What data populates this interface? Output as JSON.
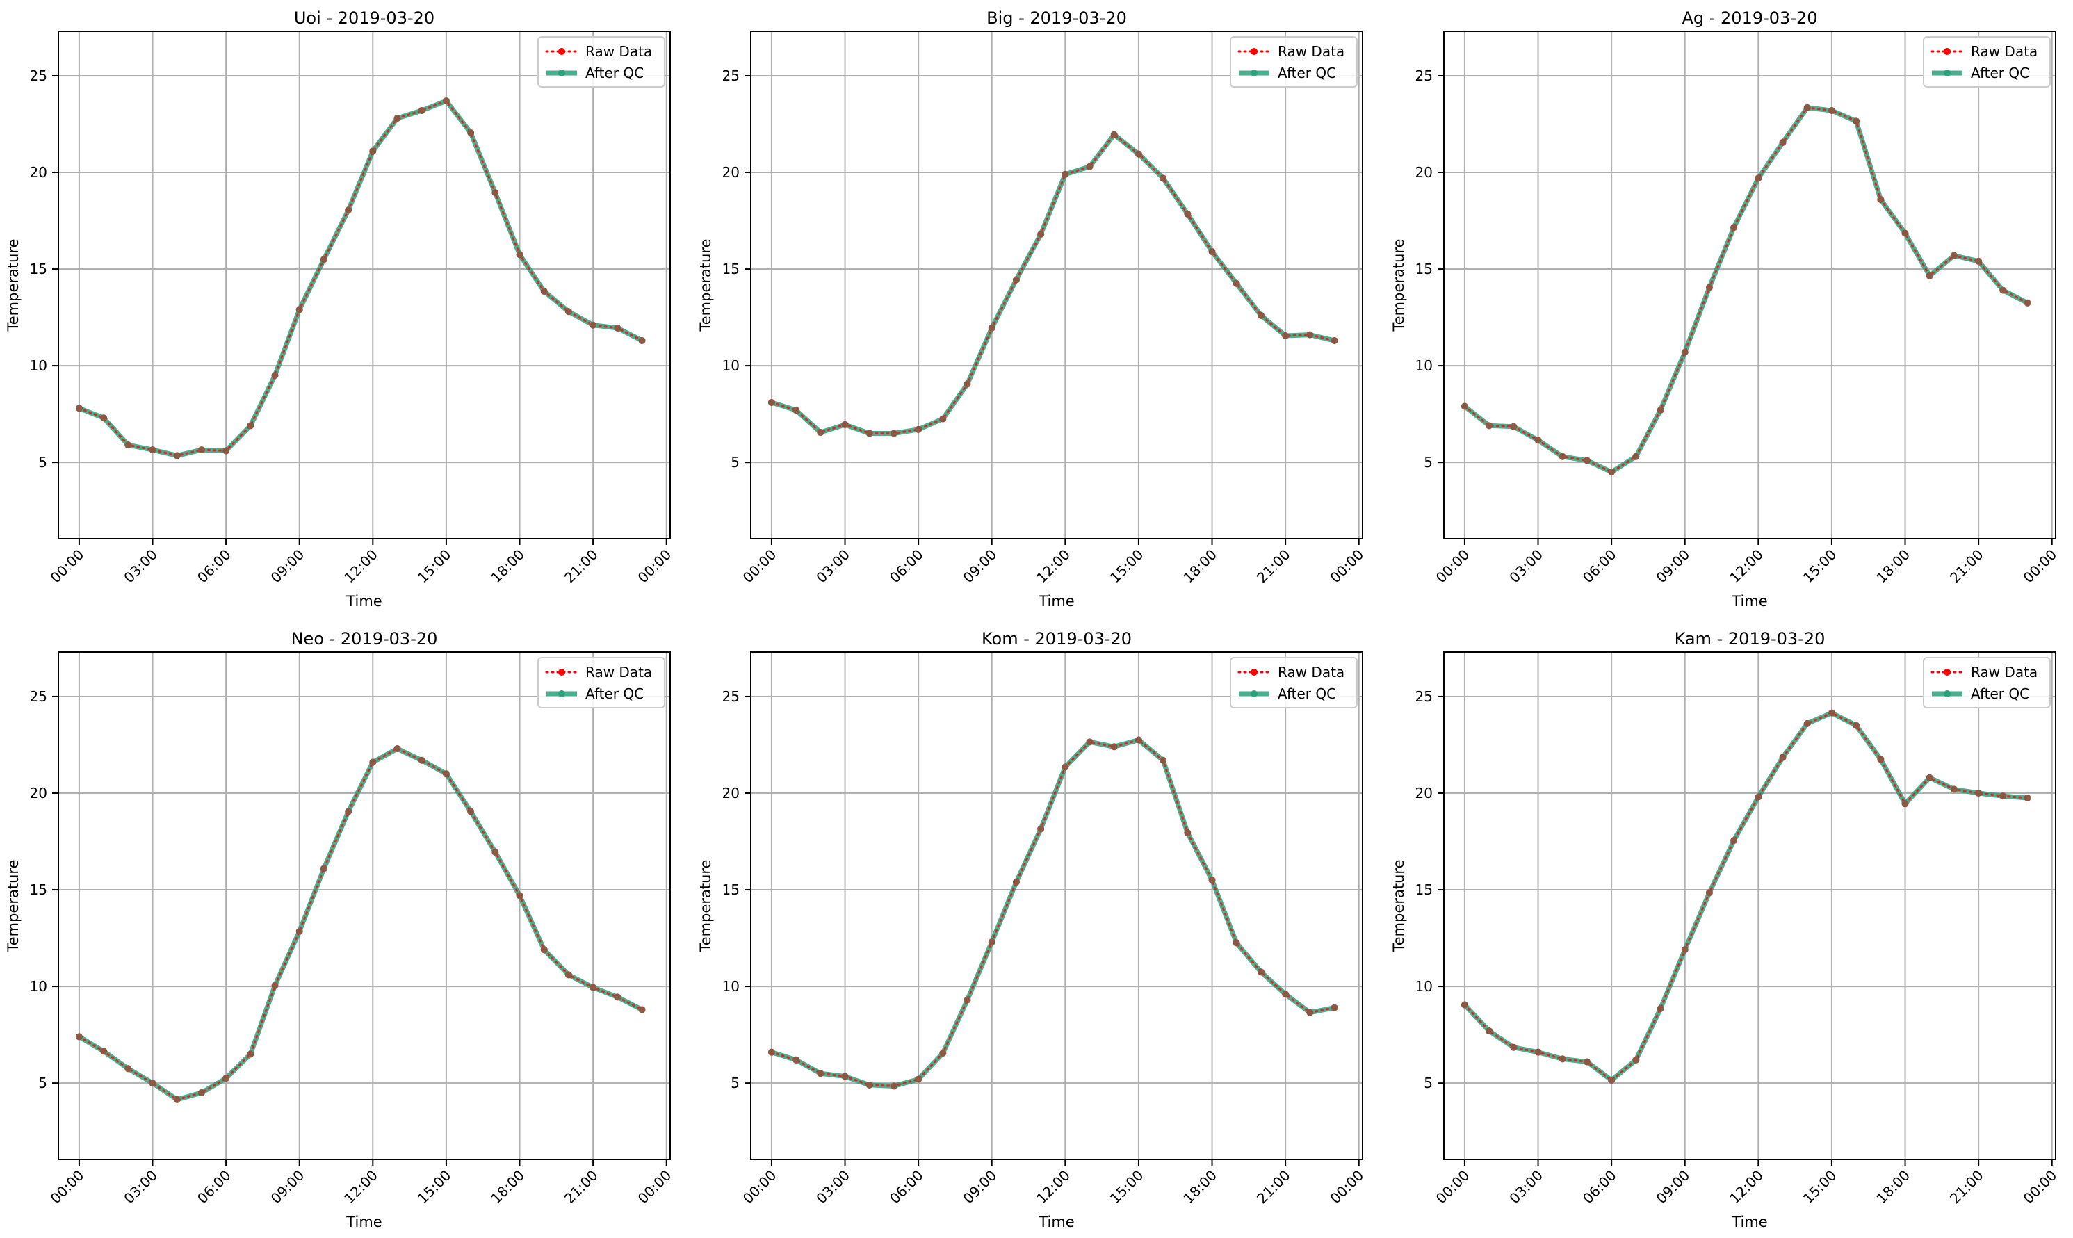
{
  "colors": {
    "raw": "#ff0000",
    "qc": "#2ca07a",
    "grid": "#b0b0b0",
    "axis": "#000000"
  },
  "legend_placement": "top-right",
  "grid": true,
  "chart_data": [
    {
      "type": "line",
      "title": "Uoi - 2019-03-20",
      "xlabel": "Time",
      "ylabel": "Temperature",
      "xlim": [
        -0.85,
        24.15
      ],
      "ylim": [
        1.05,
        27.3
      ],
      "xticks": [
        "00:00",
        "03:00",
        "06:00",
        "09:00",
        "12:00",
        "15:00",
        "18:00",
        "21:00",
        "00:00"
      ],
      "yticks": [
        5,
        10,
        15,
        20,
        25
      ],
      "x": [
        0,
        1,
        2,
        3,
        4,
        5,
        6,
        7,
        8,
        9,
        10,
        11,
        12,
        13,
        14,
        15,
        16,
        17,
        18,
        19,
        20,
        21,
        22,
        23
      ],
      "series": [
        {
          "name": "Raw Data",
          "values": [
            7.8,
            7.3,
            5.9,
            5.65,
            5.35,
            5.65,
            5.6,
            6.9,
            9.5,
            12.9,
            15.5,
            18.05,
            21.1,
            22.8,
            23.2,
            23.7,
            22.05,
            18.95,
            15.75,
            13.85,
            12.8,
            12.1,
            11.95,
            11.3
          ]
        },
        {
          "name": "After QC",
          "values": [
            7.8,
            7.3,
            5.9,
            5.65,
            5.35,
            5.65,
            5.6,
            6.9,
            9.5,
            12.9,
            15.5,
            18.05,
            21.1,
            22.8,
            23.2,
            23.7,
            22.05,
            18.95,
            15.75,
            13.85,
            12.8,
            12.1,
            11.95,
            11.3
          ]
        }
      ]
    },
    {
      "type": "line",
      "title": "Big - 2019-03-20",
      "xlabel": "Time",
      "ylabel": "Temperature",
      "xlim": [
        -0.85,
        24.15
      ],
      "ylim": [
        1.05,
        27.3
      ],
      "xticks": [
        "00:00",
        "03:00",
        "06:00",
        "09:00",
        "12:00",
        "15:00",
        "18:00",
        "21:00",
        "00:00"
      ],
      "yticks": [
        5,
        10,
        15,
        20,
        25
      ],
      "x": [
        0,
        1,
        2,
        3,
        4,
        5,
        6,
        7,
        8,
        9,
        10,
        11,
        12,
        13,
        14,
        15,
        16,
        17,
        18,
        19,
        20,
        21,
        22,
        23
      ],
      "series": [
        {
          "name": "Raw Data",
          "values": [
            8.1,
            7.7,
            6.55,
            6.95,
            6.5,
            6.5,
            6.7,
            7.25,
            9.05,
            11.95,
            14.45,
            16.8,
            19.9,
            20.3,
            21.95,
            20.95,
            19.7,
            17.85,
            15.9,
            14.25,
            12.6,
            11.55,
            11.6,
            11.3
          ]
        },
        {
          "name": "After QC",
          "values": [
            8.1,
            7.7,
            6.55,
            6.95,
            6.5,
            6.5,
            6.7,
            7.25,
            9.05,
            11.95,
            14.45,
            16.8,
            19.9,
            20.3,
            21.95,
            20.95,
            19.7,
            17.85,
            15.9,
            14.25,
            12.6,
            11.55,
            11.6,
            11.3
          ]
        }
      ]
    },
    {
      "type": "line",
      "title": "Ag - 2019-03-20",
      "xlabel": "Time",
      "ylabel": "Temperature",
      "xlim": [
        -0.85,
        24.15
      ],
      "ylim": [
        1.05,
        27.3
      ],
      "xticks": [
        "00:00",
        "03:00",
        "06:00",
        "09:00",
        "12:00",
        "15:00",
        "18:00",
        "21:00",
        "00:00"
      ],
      "yticks": [
        5,
        10,
        15,
        20,
        25
      ],
      "x": [
        0,
        1,
        2,
        3,
        4,
        5,
        6,
        7,
        8,
        9,
        10,
        11,
        12,
        13,
        14,
        15,
        16,
        17,
        18,
        19,
        20,
        21,
        22,
        23
      ],
      "series": [
        {
          "name": "Raw Data",
          "values": [
            7.9,
            6.9,
            6.85,
            6.15,
            5.3,
            5.1,
            4.5,
            5.3,
            7.7,
            10.7,
            14.05,
            17.15,
            19.7,
            21.55,
            23.35,
            23.2,
            22.65,
            18.6,
            16.85,
            14.65,
            15.7,
            15.4,
            13.9,
            13.25
          ]
        },
        {
          "name": "After QC",
          "values": [
            7.9,
            6.9,
            6.85,
            6.15,
            5.3,
            5.1,
            4.5,
            5.3,
            7.7,
            10.7,
            14.05,
            17.15,
            19.7,
            21.55,
            23.35,
            23.2,
            22.65,
            18.6,
            16.85,
            14.65,
            15.7,
            15.4,
            13.9,
            13.25
          ]
        }
      ]
    },
    {
      "type": "line",
      "title": "Neo - 2019-03-20",
      "xlabel": "Time",
      "ylabel": "Temperature",
      "xlim": [
        -0.85,
        24.15
      ],
      "ylim": [
        1.05,
        27.3
      ],
      "xticks": [
        "00:00",
        "03:00",
        "06:00",
        "09:00",
        "12:00",
        "15:00",
        "18:00",
        "21:00",
        "00:00"
      ],
      "yticks": [
        5,
        10,
        15,
        20,
        25
      ],
      "x": [
        0,
        1,
        2,
        3,
        4,
        5,
        6,
        7,
        8,
        9,
        10,
        11,
        12,
        13,
        14,
        15,
        16,
        17,
        18,
        19,
        20,
        21,
        22,
        23
      ],
      "series": [
        {
          "name": "Raw Data",
          "values": [
            7.4,
            6.65,
            5.75,
            5.0,
            4.15,
            4.5,
            5.25,
            6.5,
            10.05,
            12.85,
            16.1,
            19.05,
            21.6,
            22.3,
            21.7,
            21.0,
            19.05,
            16.95,
            14.7,
            11.9,
            10.6,
            9.95,
            9.45,
            8.8
          ]
        },
        {
          "name": "After QC",
          "values": [
            7.4,
            6.65,
            5.75,
            5.0,
            4.15,
            4.5,
            5.25,
            6.5,
            10.05,
            12.85,
            16.1,
            19.05,
            21.6,
            22.3,
            21.7,
            21.0,
            19.05,
            16.95,
            14.7,
            11.9,
            10.6,
            9.95,
            9.45,
            8.8
          ]
        }
      ]
    },
    {
      "type": "line",
      "title": "Kom - 2019-03-20",
      "xlabel": "Time",
      "ylabel": "Temperature",
      "xlim": [
        -0.85,
        24.15
      ],
      "ylim": [
        1.05,
        27.3
      ],
      "xticks": [
        "00:00",
        "03:00",
        "06:00",
        "09:00",
        "12:00",
        "15:00",
        "18:00",
        "21:00",
        "00:00"
      ],
      "yticks": [
        5,
        10,
        15,
        20,
        25
      ],
      "x": [
        0,
        1,
        2,
        3,
        4,
        5,
        6,
        7,
        8,
        9,
        10,
        11,
        12,
        13,
        14,
        15,
        16,
        17,
        18,
        19,
        20,
        21,
        22,
        23
      ],
      "series": [
        {
          "name": "Raw Data",
          "values": [
            6.6,
            6.2,
            5.5,
            5.35,
            4.9,
            4.85,
            5.2,
            6.55,
            9.3,
            12.3,
            15.4,
            18.15,
            21.35,
            22.65,
            22.4,
            22.75,
            21.7,
            17.95,
            15.5,
            12.25,
            10.75,
            9.6,
            8.65,
            8.9
          ]
        },
        {
          "name": "After QC",
          "values": [
            6.6,
            6.2,
            5.5,
            5.35,
            4.9,
            4.85,
            5.2,
            6.55,
            9.3,
            12.3,
            15.4,
            18.15,
            21.35,
            22.65,
            22.4,
            22.75,
            21.7,
            17.95,
            15.5,
            12.25,
            10.75,
            9.6,
            8.65,
            8.9
          ]
        }
      ]
    },
    {
      "type": "line",
      "title": "Kam - 2019-03-20",
      "xlabel": "Time",
      "ylabel": "Temperature",
      "xlim": [
        -0.85,
        24.15
      ],
      "ylim": [
        1.05,
        27.3
      ],
      "xticks": [
        "00:00",
        "03:00",
        "06:00",
        "09:00",
        "12:00",
        "15:00",
        "18:00",
        "21:00",
        "00:00"
      ],
      "yticks": [
        5,
        10,
        15,
        20,
        25
      ],
      "x": [
        0,
        1,
        2,
        3,
        4,
        5,
        6,
        7,
        8,
        9,
        10,
        11,
        12,
        13,
        14,
        15,
        16,
        17,
        18,
        19,
        20,
        21,
        22,
        23
      ],
      "series": [
        {
          "name": "Raw Data",
          "values": [
            9.05,
            7.7,
            6.85,
            6.6,
            6.25,
            6.1,
            5.15,
            6.2,
            8.85,
            11.9,
            14.85,
            17.55,
            19.8,
            21.85,
            23.6,
            24.15,
            23.5,
            21.75,
            19.45,
            20.8,
            20.2,
            20.0,
            19.85,
            19.75
          ]
        },
        {
          "name": "After QC",
          "values": [
            9.05,
            7.7,
            6.85,
            6.6,
            6.25,
            6.1,
            5.15,
            6.2,
            8.85,
            11.9,
            14.85,
            17.55,
            19.8,
            21.85,
            23.6,
            24.15,
            23.5,
            21.75,
            19.45,
            20.8,
            20.2,
            20.0,
            19.85,
            19.75
          ]
        }
      ]
    }
  ]
}
